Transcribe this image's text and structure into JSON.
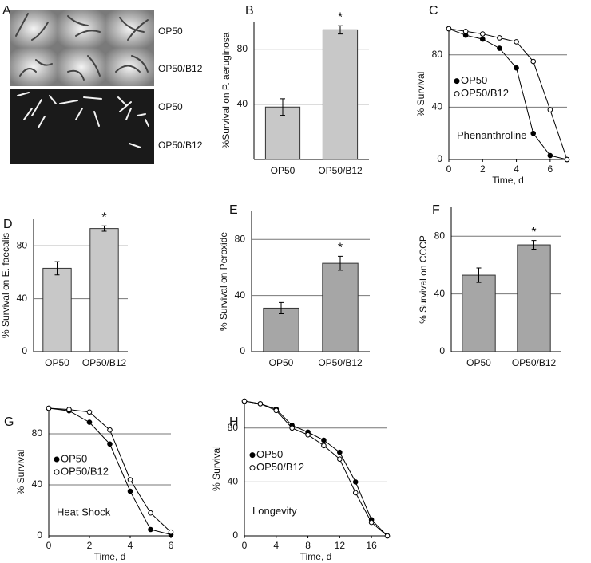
{
  "panel_a": {
    "label": "A",
    "rows": [
      "OP50",
      "OP50/B12",
      "OP50",
      "OP50/B12"
    ]
  },
  "chart_data": [
    {
      "type": "bar",
      "label": "B",
      "ylabel": "%Survival on P. aeruginosa",
      "categories": [
        "OP50",
        "OP50/B12"
      ],
      "values": [
        38,
        94
      ],
      "errors": [
        6,
        3
      ],
      "color": "#c8c8c8",
      "annotation": "*",
      "ylim": [
        0,
        100
      ],
      "yticks": [
        40,
        80
      ],
      "grid": true
    },
    {
      "type": "line",
      "label": "C",
      "xlabel": "Time, d",
      "ylabel": "% Survival",
      "annotation": "Phenanthroline",
      "x": [
        0,
        1,
        2,
        3,
        4,
        5,
        6,
        7
      ],
      "series": [
        {
          "name": "OP50",
          "color": "#000000",
          "values": [
            100,
            95,
            92,
            85,
            70,
            20,
            3,
            0
          ]
        },
        {
          "name": "OP50/B12",
          "color": "#ffffff",
          "values": [
            100,
            98,
            96,
            93,
            90,
            75,
            38,
            0
          ]
        }
      ],
      "xlim": [
        0,
        7
      ],
      "xticks": [
        0,
        2,
        4,
        6
      ],
      "ylim": [
        0,
        100
      ],
      "yticks": [
        0,
        40,
        80
      ],
      "grid": true,
      "legend": "left"
    },
    {
      "type": "bar",
      "label": "D",
      "ylabel": "% Survival on E. faecalis",
      "categories": [
        "OP50",
        "OP50/B12"
      ],
      "values": [
        63,
        93
      ],
      "errors": [
        5,
        2
      ],
      "color": "#c8c8c8",
      "annotation": "*",
      "ylim": [
        0,
        100
      ],
      "yticks": [
        0,
        40,
        80
      ],
      "grid": true
    },
    {
      "type": "bar",
      "label": "E",
      "ylabel": "% Survival on Peroxide",
      "categories": [
        "OP50",
        "OP50/B12"
      ],
      "values": [
        31,
        63
      ],
      "errors": [
        4,
        5
      ],
      "color": "#a6a6a6",
      "annotation": "*",
      "ylim": [
        0,
        100
      ],
      "yticks": [
        0,
        40,
        80
      ],
      "grid": true
    },
    {
      "type": "bar",
      "label": "F",
      "ylabel": "% Survival on CCCP",
      "categories": [
        "OP50",
        "OP50/B12"
      ],
      "values": [
        53,
        74
      ],
      "errors": [
        5,
        3
      ],
      "color": "#a6a6a6",
      "annotation": "*",
      "ylim": [
        0,
        100
      ],
      "yticks": [
        0,
        40,
        80
      ],
      "grid": true
    },
    {
      "type": "line",
      "label": "G",
      "xlabel": "Time, d",
      "ylabel": "% Survival",
      "annotation": "Heat Shock",
      "x": [
        0,
        1,
        2,
        3,
        4,
        5,
        6
      ],
      "series": [
        {
          "name": "OP50",
          "color": "#000000",
          "values": [
            100,
            98,
            89,
            72,
            35,
            5,
            1
          ]
        },
        {
          "name": "OP50/B12",
          "color": "#ffffff",
          "values": [
            100,
            99,
            97,
            83,
            44,
            18,
            3
          ]
        }
      ],
      "xlim": [
        0,
        6
      ],
      "xticks": [
        0,
        2,
        4,
        6
      ],
      "ylim": [
        0,
        100
      ],
      "yticks": [
        0,
        40,
        80
      ],
      "grid": true,
      "legend": "left"
    },
    {
      "type": "line",
      "label": "H",
      "xlabel": "Time, d",
      "ylabel": "% Survival",
      "annotation": "Longevity",
      "x": [
        0,
        2,
        4,
        6,
        8,
        10,
        12,
        14,
        16,
        18
      ],
      "series": [
        {
          "name": "OP50",
          "color": "#000000",
          "values": [
            100,
            98,
            94,
            82,
            77,
            71,
            62,
            40,
            12,
            0
          ]
        },
        {
          "name": "OP50/B12",
          "color": "#ffffff",
          "values": [
            100,
            98,
            93,
            80,
            75,
            67,
            57,
            32,
            10,
            0
          ]
        }
      ],
      "xlim": [
        0,
        18
      ],
      "xticks": [
        0,
        4,
        8,
        12,
        16
      ],
      "ylim": [
        0,
        100
      ],
      "yticks": [
        0,
        40,
        80
      ],
      "grid": true,
      "legend": "left"
    }
  ]
}
